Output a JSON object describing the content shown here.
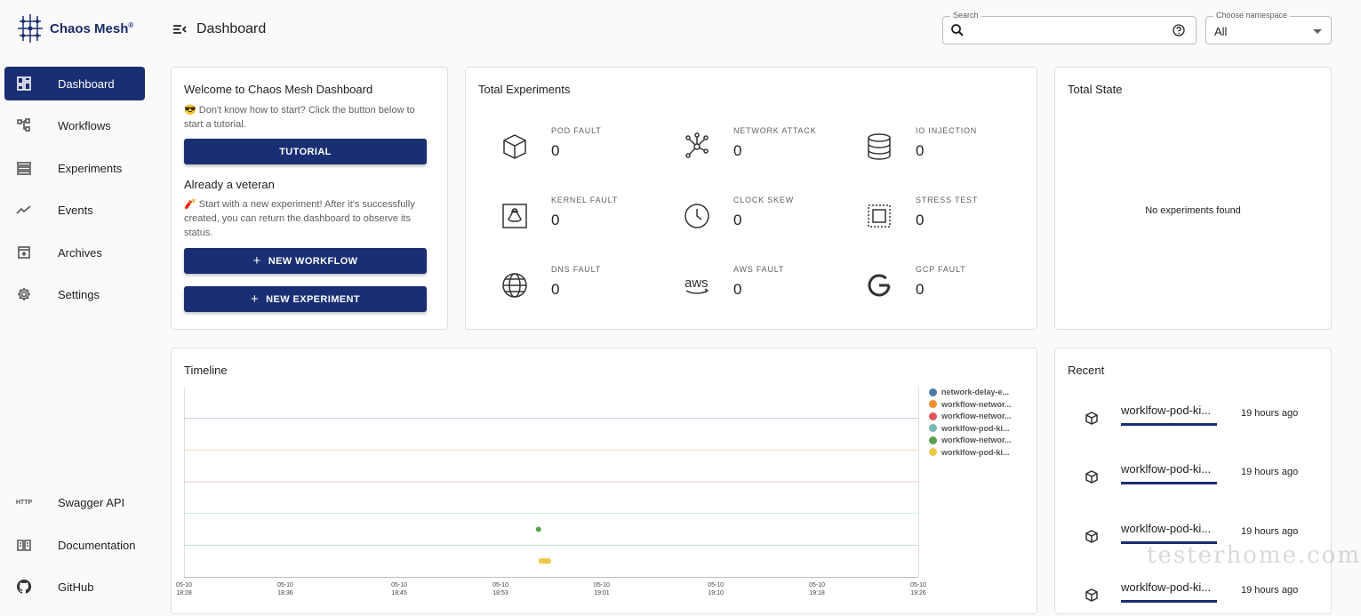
{
  "app": {
    "name": "Chaos Mesh",
    "trademark": "®"
  },
  "sidebar": {
    "items": [
      {
        "label": "Dashboard",
        "icon": "dashboard-icon",
        "active": true
      },
      {
        "label": "Workflows",
        "icon": "workflow-icon"
      },
      {
        "label": "Experiments",
        "icon": "list-icon"
      },
      {
        "label": "Events",
        "icon": "trend-icon"
      },
      {
        "label": "Archives",
        "icon": "archive-icon"
      },
      {
        "label": "Settings",
        "icon": "gear-icon"
      }
    ],
    "bottom_items": [
      {
        "label": "Swagger API",
        "icon": "http-icon",
        "icon_text": "HTTP"
      },
      {
        "label": "Documentation",
        "icon": "book-icon"
      },
      {
        "label": "GitHub",
        "icon": "github-icon"
      }
    ]
  },
  "header": {
    "title": "Dashboard",
    "search_legend": "Search",
    "search_value": "",
    "namespace_legend": "Choose namespace",
    "namespace_value": "All"
  },
  "welcome": {
    "title": "Welcome to Chaos Mesh Dashboard",
    "intro": "😎 Don't know how to start? Click the button below to start a tutorial.",
    "tutorial_button": "TUTORIAL",
    "veteran_title": "Already a veteran",
    "veteran_text": "🧨 Start with a new experiment! After it's successfully created, you can return the dashboard to observe its status.",
    "new_workflow_button": "NEW WORKFLOW",
    "new_experiment_button": "NEW EXPERIMENT"
  },
  "experiments": {
    "title": "Total Experiments",
    "items": [
      {
        "label": "POD FAULT",
        "count": "0",
        "icon": "cube-icon"
      },
      {
        "label": "NETWORK ATTACK",
        "count": "0",
        "icon": "network-icon"
      },
      {
        "label": "IO INJECTION",
        "count": "0",
        "icon": "database-icon"
      },
      {
        "label": "KERNEL FAULT",
        "count": "0",
        "icon": "linux-icon"
      },
      {
        "label": "CLOCK SKEW",
        "count": "0",
        "icon": "clock-icon"
      },
      {
        "label": "STRESS TEST",
        "count": "0",
        "icon": "cpu-icon"
      },
      {
        "label": "DNS FAULT",
        "count": "0",
        "icon": "globe-icon"
      },
      {
        "label": "AWS FAULT",
        "count": "0",
        "icon": "aws-icon"
      },
      {
        "label": "GCP FAULT",
        "count": "0",
        "icon": "google-icon"
      }
    ]
  },
  "state": {
    "title": "Total State",
    "empty_text": "No experiments found"
  },
  "timeline": {
    "title": "Timeline",
    "x_ticks": [
      {
        "date": "05-10",
        "time": "18:28"
      },
      {
        "date": "05-10",
        "time": "18:36"
      },
      {
        "date": "05-10",
        "time": "18:45"
      },
      {
        "date": "05-10",
        "time": "18:53"
      },
      {
        "date": "05-10",
        "time": "19:01"
      },
      {
        "date": "05-10",
        "time": "19:10"
      },
      {
        "date": "05-10",
        "time": "19:18"
      },
      {
        "date": "05-10",
        "time": "19:26"
      }
    ],
    "legend": [
      {
        "name": "network-delay-e...",
        "color": "#4e79a7"
      },
      {
        "name": "workflow-networ...",
        "color": "#f28e2b"
      },
      {
        "name": "workflow-networ...",
        "color": "#e15759"
      },
      {
        "name": "worklfow-pod-ki...",
        "color": "#76b7b2"
      },
      {
        "name": "workflow-networ...",
        "color": "#59a14f"
      },
      {
        "name": "worklfow-pod-ki...",
        "color": "#edc948"
      }
    ]
  },
  "chart_data": {
    "type": "scatter",
    "title": "Timeline",
    "x_label": "",
    "y_label": "",
    "x_ticks": [
      "05-10 18:28",
      "05-10 18:36",
      "05-10 18:45",
      "05-10 18:53",
      "05-10 19:01",
      "05-10 19:10",
      "05-10 19:18",
      "05-10 19:26"
    ],
    "x_range": [
      "05-10 18:28",
      "05-10 19:26"
    ],
    "grid": true,
    "legend_position": "right",
    "rows": 6,
    "series": [
      {
        "name": "network-delay-e...",
        "color": "#4e79a7",
        "points": []
      },
      {
        "name": "workflow-networ...",
        "color": "#f28e2b",
        "points": []
      },
      {
        "name": "workflow-networ...",
        "color": "#e15759",
        "points": []
      },
      {
        "name": "worklfow-pod-ki...",
        "color": "#76b7b2",
        "points": []
      },
      {
        "name": "workflow-networ...",
        "color": "#59a14f",
        "points": [
          {
            "start": "05-10 18:56",
            "end": "05-10 18:56",
            "row": 5
          }
        ]
      },
      {
        "name": "worklfow-pod-ki...",
        "color": "#edc948",
        "points": [
          {
            "start": "05-10 18:56",
            "end": "05-10 18:57",
            "row": 6
          }
        ]
      }
    ]
  },
  "recent": {
    "title": "Recent",
    "items": [
      {
        "name": "worklfow-pod-ki...",
        "time": "19 hours ago"
      },
      {
        "name": "worklfow-pod-ki...",
        "time": "19 hours ago"
      },
      {
        "name": "worklfow-pod-ki...",
        "time": "19 hours ago"
      },
      {
        "name": "worklfow-pod-ki...",
        "time": "19 hours ago"
      }
    ]
  },
  "watermark": "testerhome.com"
}
